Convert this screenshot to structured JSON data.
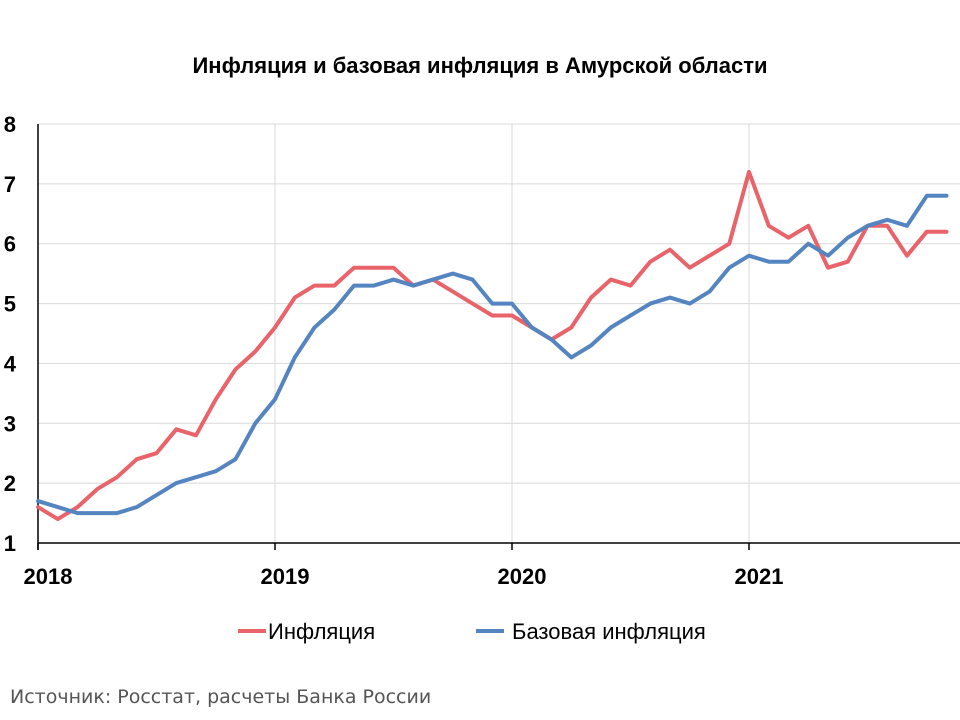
{
  "chart_data": {
    "type": "line",
    "title": "Инфляция и базовая инфляция в Амурской области",
    "xlabel": "",
    "ylabel": "",
    "x_tick_labels": [
      "2018",
      "2019",
      "2020",
      "2021"
    ],
    "x_start": "2018-01",
    "ylim": [
      1,
      8
    ],
    "y_ticks": [
      1,
      2,
      3,
      4,
      5,
      6,
      7,
      8
    ],
    "grid": true,
    "legend_position": "bottom",
    "series": [
      {
        "name": "Инфляция",
        "color": "#E8636A",
        "values": [
          1.6,
          1.4,
          1.6,
          1.9,
          2.1,
          2.4,
          2.5,
          2.9,
          2.8,
          3.4,
          3.9,
          4.2,
          4.6,
          5.1,
          5.3,
          5.3,
          5.6,
          5.6,
          5.6,
          5.3,
          5.4,
          5.2,
          5.0,
          4.8,
          4.8,
          4.6,
          4.4,
          4.6,
          5.1,
          5.4,
          5.3,
          5.7,
          5.9,
          5.6,
          5.8,
          6.0,
          7.2,
          6.3,
          6.1,
          6.3,
          5.6,
          5.7,
          6.3,
          6.3,
          5.8,
          6.2,
          6.2
        ]
      },
      {
        "name": "Базовая инфляция",
        "color": "#5585C0",
        "values": [
          1.7,
          1.6,
          1.5,
          1.5,
          1.5,
          1.6,
          1.8,
          2.0,
          2.1,
          2.2,
          2.4,
          3.0,
          3.4,
          4.1,
          4.6,
          4.9,
          5.3,
          5.3,
          5.4,
          5.3,
          5.4,
          5.5,
          5.4,
          5.0,
          5.0,
          4.6,
          4.4,
          4.1,
          4.3,
          4.6,
          4.8,
          5.0,
          5.1,
          5.0,
          5.2,
          5.6,
          5.8,
          5.7,
          5.7,
          6.0,
          5.8,
          6.1,
          6.3,
          6.4,
          6.3,
          6.8,
          6.8
        ]
      }
    ]
  },
  "source_text": "Источник: Росстат, расчеты Банка России"
}
